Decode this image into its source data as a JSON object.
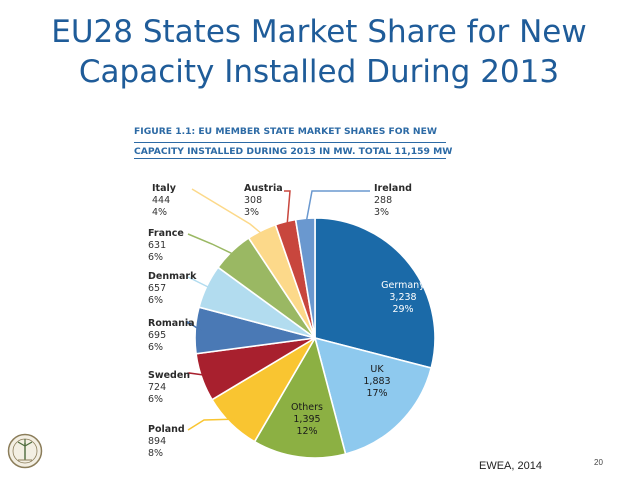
{
  "slide": {
    "title_line1": "EU28 States Market Share for New",
    "title_line2": "Capacity Installed During 2013",
    "source": "EWEA, 2014",
    "page_number": "20"
  },
  "figure": {
    "caption_line1": "FIGURE 1.1: EU MEMBER STATE MARKET SHARES FOR NEW",
    "caption_line2": "CAPACITY INSTALLED DURING 2013 IN MW. TOTAL 11,159 MW"
  },
  "chart_data": {
    "type": "pie",
    "title": "FIGURE 1.1: EU MEMBER STATE MARKET SHARES FOR NEW CAPACITY INSTALLED DURING 2013 IN MW. TOTAL 11,159 MW",
    "unit": "MW",
    "total": 11159,
    "slices": [
      {
        "label": "Germany",
        "value": 3238,
        "value_label": "3,238",
        "percent": 29,
        "percent_label": "29%",
        "color": "#1b6aa8"
      },
      {
        "label": "UK",
        "value": 1883,
        "value_label": "1,883",
        "percent": 17,
        "percent_label": "17%",
        "color": "#8ec9ee"
      },
      {
        "label": "Others",
        "value": 1395,
        "value_label": "1,395",
        "percent": 12,
        "percent_label": "12%",
        "color": "#8cb043"
      },
      {
        "label": "Poland",
        "value": 894,
        "value_label": "894",
        "percent": 8,
        "percent_label": "8%",
        "color": "#f9c531"
      },
      {
        "label": "Sweden",
        "value": 724,
        "value_label": "724",
        "percent": 6,
        "percent_label": "6%",
        "color": "#a8202e"
      },
      {
        "label": "Romania",
        "value": 695,
        "value_label": "695",
        "percent": 6,
        "percent_label": "6%",
        "color": "#4a79b5"
      },
      {
        "label": "Denmark",
        "value": 657,
        "value_label": "657",
        "percent": 6,
        "percent_label": "6%",
        "color": "#b2dcef"
      },
      {
        "label": "France",
        "value": 631,
        "value_label": "631",
        "percent": 6,
        "percent_label": "6%",
        "color": "#9ab863"
      },
      {
        "label": "Italy",
        "value": 444,
        "value_label": "444",
        "percent": 4,
        "percent_label": "4%",
        "color": "#fcd98a"
      },
      {
        "label": "Austria",
        "value": 308,
        "value_label": "308",
        "percent": 3,
        "percent_label": "3%",
        "color": "#c8463d"
      },
      {
        "label": "Ireland",
        "value": 288,
        "value_label": "288",
        "percent": 3,
        "percent_label": "3%",
        "color": "#6a98cf"
      }
    ],
    "start_at": "12 o'clock",
    "direction": "clockwise",
    "legend": "none"
  }
}
